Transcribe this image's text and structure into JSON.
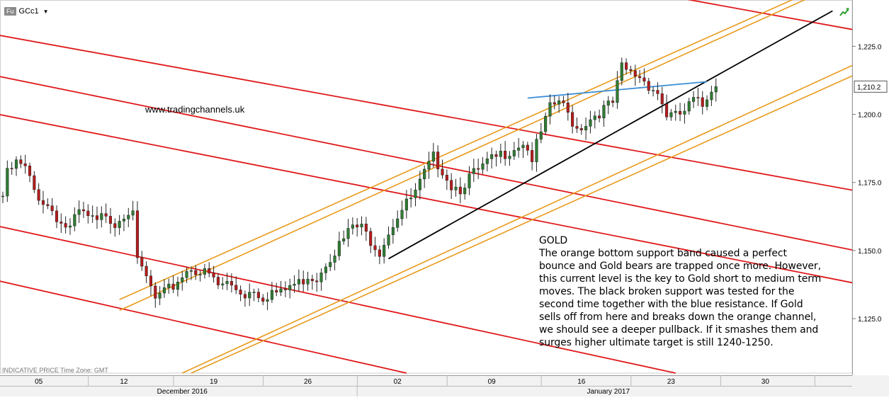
{
  "header": {
    "badge": "Fu",
    "symbol": "GCc1",
    "dropdown_icon": "caret-down-icon"
  },
  "watermark": "www.tradingchannels.uk",
  "annotation": {
    "title": "GOLD",
    "body": "The orange bottom support band caused a perfect bounce and Gold bears are trapped once more. However, this current level is the key to Gold short to medium term moves. The black broken support was tested for the second time together with the blue resistance. If Gold sells off from here and breaks down the orange channel, we should see a deeper pullback. If it smashes them and surges higher ultimate target is still 1240-1250."
  },
  "footer": "INDICATIVE PRICE   Time Zone: GMT",
  "corner_icon": "trend-arrow-icon",
  "colors": {
    "red_lines": "#e0191b",
    "orange_lines": "#e89a1b",
    "black_line": "#000000",
    "blue_line": "#3d8fd8",
    "bull_candle": "#2e7d32",
    "bear_candle": "#b71c1c",
    "axis_bg": "#f2f2f2"
  },
  "chart_data": {
    "type": "candlestick",
    "instrument": "GCc1",
    "y_ticks": [
      1125,
      1150,
      1175,
      1200,
      1225
    ],
    "y_tick_labels": [
      "1,125.0",
      "1,150.0",
      "1,175.0",
      "1,200.0",
      "1,225.0"
    ],
    "ylim": [
      1105,
      1242
    ],
    "last_price": 1210.2,
    "last_price_label": "1,210.2",
    "x_day_ticks": [
      "05",
      "12",
      "19",
      "26",
      "02",
      "09",
      "16",
      "23",
      "30"
    ],
    "x_month_labels": [
      "December 2016",
      "January 2017"
    ],
    "close_path": [
      [
        0,
        1170
      ],
      [
        1,
        1178
      ],
      [
        3,
        1182
      ],
      [
        5,
        1180
      ],
      [
        7,
        1172
      ],
      [
        9,
        1168
      ],
      [
        11,
        1165
      ],
      [
        13,
        1160
      ],
      [
        15,
        1158
      ],
      [
        17,
        1164
      ],
      [
        19,
        1162
      ],
      [
        21,
        1160
      ],
      [
        23,
        1164
      ],
      [
        25,
        1160
      ],
      [
        27,
        1164
      ],
      [
        29,
        1166
      ],
      [
        30,
        1145
      ],
      [
        32,
        1140
      ],
      [
        34,
        1132
      ],
      [
        36,
        1134
      ],
      [
        38,
        1137
      ],
      [
        40,
        1141
      ],
      [
        42,
        1144
      ],
      [
        44,
        1142
      ],
      [
        46,
        1141
      ],
      [
        48,
        1137
      ],
      [
        50,
        1138
      ],
      [
        52,
        1136
      ],
      [
        54,
        1134
      ],
      [
        56,
        1136
      ],
      [
        58,
        1133
      ],
      [
        60,
        1135
      ],
      [
        62,
        1134
      ],
      [
        64,
        1137
      ],
      [
        66,
        1138
      ],
      [
        68,
        1141
      ],
      [
        70,
        1140
      ],
      [
        72,
        1146
      ],
      [
        74,
        1150
      ],
      [
        76,
        1154
      ],
      [
        78,
        1159
      ],
      [
        80,
        1158
      ],
      [
        82,
        1154
      ],
      [
        84,
        1150
      ],
      [
        86,
        1157
      ],
      [
        88,
        1163
      ],
      [
        90,
        1167
      ],
      [
        92,
        1171
      ],
      [
        94,
        1178
      ],
      [
        96,
        1184
      ],
      [
        98,
        1180
      ],
      [
        100,
        1174
      ],
      [
        102,
        1173
      ],
      [
        104,
        1177
      ],
      [
        106,
        1179
      ],
      [
        108,
        1182
      ],
      [
        110,
        1184
      ],
      [
        112,
        1186
      ],
      [
        114,
        1188
      ],
      [
        116,
        1190
      ],
      [
        118,
        1184
      ],
      [
        120,
        1193
      ],
      [
        122,
        1202
      ],
      [
        124,
        1205
      ],
      [
        126,
        1200
      ],
      [
        128,
        1195
      ],
      [
        130,
        1197
      ],
      [
        132,
        1200
      ],
      [
        134,
        1202
      ],
      [
        136,
        1204
      ],
      [
        138,
        1217
      ],
      [
        140,
        1215
      ],
      [
        142,
        1214
      ],
      [
        144,
        1211
      ],
      [
        146,
        1208
      ],
      [
        148,
        1200
      ],
      [
        150,
        1199
      ],
      [
        152,
        1201
      ],
      [
        154,
        1205
      ],
      [
        156,
        1203
      ],
      [
        158,
        1210
      ],
      [
        159,
        1210.2
      ]
    ],
    "lines": [
      {
        "color": "red",
        "points": [
          [
            -4,
            1230
          ],
          [
            190,
            1172
          ]
        ]
      },
      {
        "color": "red",
        "points": [
          [
            -4,
            1215
          ],
          [
            190,
            1150
          ]
        ]
      },
      {
        "color": "red",
        "points": [
          [
            -4,
            1201
          ],
          [
            190,
            1138
          ]
        ]
      },
      {
        "color": "red",
        "points": [
          [
            -4,
            1160
          ],
          [
            150,
            1105
          ]
        ]
      },
      {
        "color": "red",
        "points": [
          [
            -4,
            1140
          ],
          [
            90,
            1105
          ]
        ]
      },
      {
        "color": "red",
        "points": [
          [
            150,
            1243
          ],
          [
            190,
            1231
          ]
        ]
      },
      {
        "color": "orange",
        "points": [
          [
            26,
            1132
          ],
          [
            180,
            1245
          ]
        ]
      },
      {
        "color": "orange",
        "points": [
          [
            26,
            1128
          ],
          [
            180,
            1243
          ]
        ]
      },
      {
        "color": "orange",
        "points": [
          [
            40,
            1105
          ],
          [
            200,
            1226
          ]
        ]
      },
      {
        "color": "orange",
        "points": [
          [
            42,
            1105
          ],
          [
            200,
            1222
          ]
        ]
      },
      {
        "color": "black",
        "points": [
          [
            86,
            1147
          ],
          [
            185,
            1238
          ]
        ]
      },
      {
        "color": "blue",
        "points": [
          [
            117,
            1206
          ],
          [
            157,
            1212
          ]
        ]
      }
    ]
  }
}
